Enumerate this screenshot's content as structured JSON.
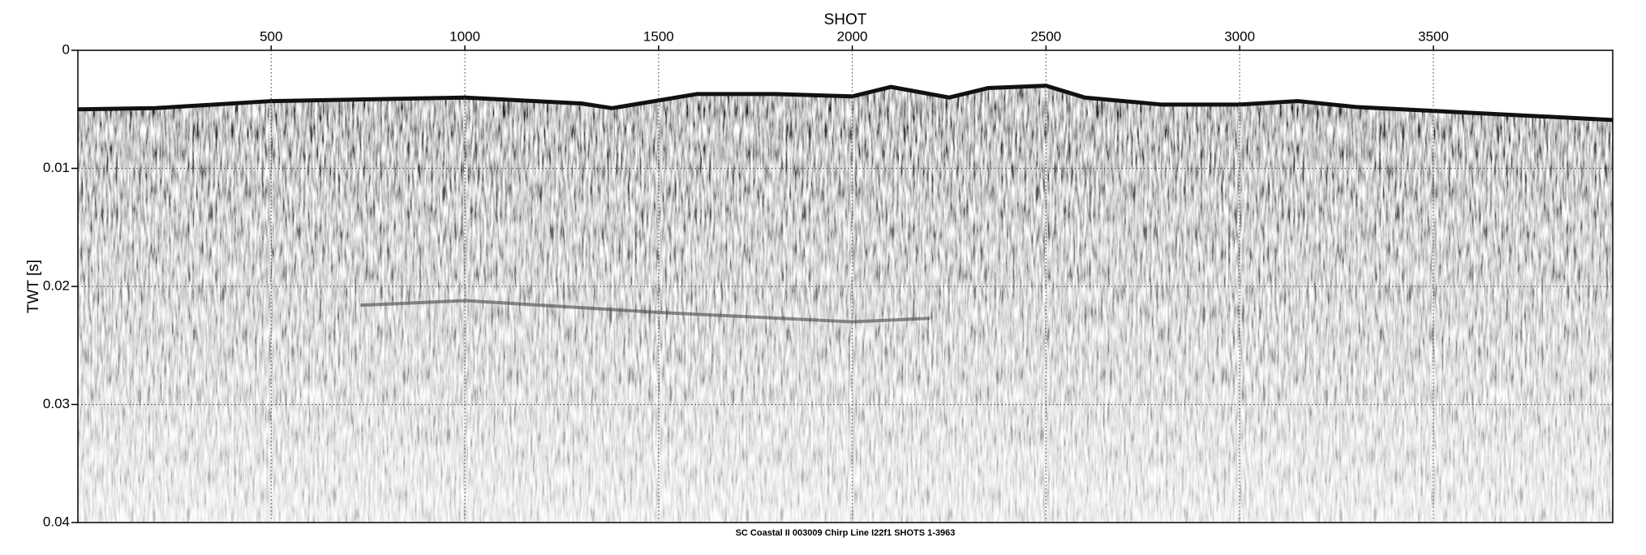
{
  "chart_data": {
    "type": "seismic",
    "title": "SHOT",
    "y_label": "TWT [s]",
    "caption": "SC Coastal II 003009 Chirp Line I22f1 SHOTS 1-3963",
    "xlim": [
      1,
      3963
    ],
    "xticks": [
      500,
      1000,
      1500,
      2000,
      2500,
      3000,
      3500
    ],
    "ylim": [
      0,
      0.04
    ],
    "yticks": [
      0,
      0.01,
      0.02,
      0.03,
      0.04
    ],
    "y_inverted": true,
    "grid": true,
    "horizons": [
      {
        "color": "#111111",
        "x": [
          1,
          200,
          500,
          1000,
          1300,
          1380,
          1600,
          1800,
          2000,
          2100,
          2250,
          2350,
          2500,
          2600,
          2800,
          3000,
          3150,
          3300,
          3963
        ],
        "values": [
          0.005,
          0.0049,
          0.0043,
          0.004,
          0.0045,
          0.0049,
          0.0037,
          0.0037,
          0.0039,
          0.0031,
          0.004,
          0.0032,
          0.003,
          0.004,
          0.0046,
          0.0046,
          0.0043,
          0.0048,
          0.0059
        ]
      },
      {
        "color": "#444444",
        "x": [
          730,
          1000,
          1500,
          2000,
          2200
        ],
        "values": [
          0.0216,
          0.0212,
          0.0222,
          0.023,
          0.0227
        ]
      }
    ]
  }
}
